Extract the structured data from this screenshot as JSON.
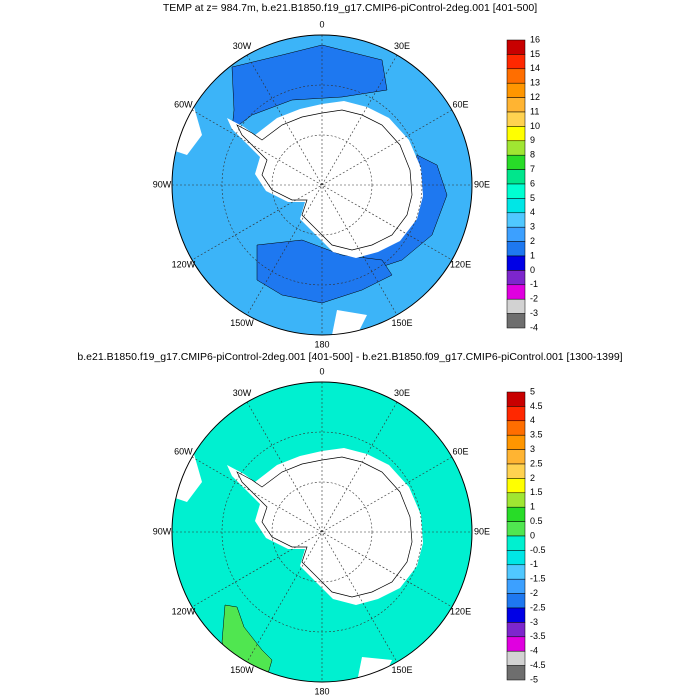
{
  "maps": [
    {
      "title": "TEMP at z= 984.7m, b.e21.B1850.f19_g17.CMIP6-piControl-2deg.001 [401-500]",
      "lon_labels": [
        "0",
        "30E",
        "60E",
        "90E",
        "120E",
        "150E",
        "180",
        "150W",
        "120W",
        "90W",
        "60W",
        "30W"
      ],
      "colorbar": {
        "levels": [
          16,
          15,
          14,
          13,
          12,
          11,
          10,
          9,
          8,
          7,
          6,
          5,
          4,
          3,
          2,
          1,
          0,
          -1,
          -2,
          -3,
          -4
        ],
        "colors": [
          "#c80000",
          "#ff2800",
          "#ff6e00",
          "#ff9600",
          "#ffb432",
          "#ffd250",
          "#ffff00",
          "#a0e632",
          "#28dc28",
          "#00e68c",
          "#00ffd2",
          "#00e6e6",
          "#50c8ff",
          "#3ca0ff",
          "#1e78f0",
          "#0000e6",
          "#7d26cd",
          "#e000e0",
          "#d2d2d2",
          "#6e6e6e"
        ]
      }
    },
    {
      "title": "b.e21.B1850.f19_g17.CMIP6-piControl-2deg.001 [401-500] - b.e21.B1850.f09_g17.CMIP6-piControl.001 [1300-1399]",
      "lon_labels": [
        "0",
        "30E",
        "60E",
        "90E",
        "120E",
        "150E",
        "180",
        "150W",
        "120W",
        "90W",
        "60W",
        "30W"
      ],
      "colorbar": {
        "levels": [
          5,
          4.5,
          4,
          3.5,
          3,
          2.5,
          2,
          1.5,
          1,
          0.5,
          0,
          -0.5,
          -1,
          -1.5,
          -2,
          -2.5,
          -3,
          -3.5,
          -4,
          -4.5,
          -5
        ],
        "colors": [
          "#c80000",
          "#ff2800",
          "#ff6e00",
          "#ff9600",
          "#ffb432",
          "#ffd250",
          "#ffff00",
          "#a0e632",
          "#28dc28",
          "#50e650",
          "#00f0d0",
          "#00e6e6",
          "#50c8ff",
          "#3ca0ff",
          "#1e78f0",
          "#0000e6",
          "#7d26cd",
          "#e000e0",
          "#d2d2d2",
          "#6e6e6e"
        ]
      }
    }
  ]
}
